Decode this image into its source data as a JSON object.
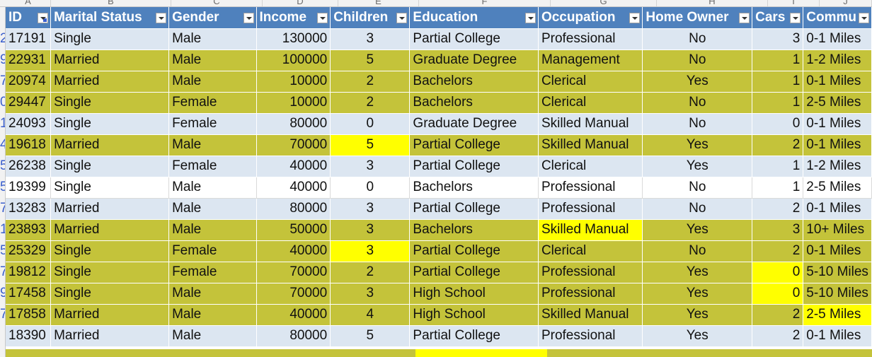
{
  "columns": [
    {
      "key": "id",
      "label": "ID",
      "filtered": true
    },
    {
      "key": "marital",
      "label": "Marital Status",
      "filtered": false
    },
    {
      "key": "gender",
      "label": "Gender",
      "filtered": false
    },
    {
      "key": "income",
      "label": "Income",
      "filtered": false
    },
    {
      "key": "children",
      "label": "Children",
      "filtered": false
    },
    {
      "key": "education",
      "label": "Education",
      "filtered": false
    },
    {
      "key": "occupation",
      "label": "Occupation",
      "filtered": false
    },
    {
      "key": "home",
      "label": "Home Owner",
      "filtered": false
    },
    {
      "key": "cars",
      "label": "Cars",
      "filtered": false
    },
    {
      "key": "commute",
      "label": "Commu",
      "filtered": false
    }
  ],
  "column_letters": [
    "A",
    "B",
    "C",
    "D",
    "E",
    "F",
    "G",
    "H",
    "I",
    "J"
  ],
  "row_number_fragments": [
    "",
    "2",
    "9",
    "7",
    "0",
    "1",
    "4",
    "5",
    "5",
    "7",
    "1",
    "5",
    "7",
    "9",
    "7"
  ],
  "rows": [
    {
      "style": "blue",
      "highlight": [],
      "cells": [
        "17191",
        "Single",
        "Male",
        "130000",
        "3",
        "Partial College",
        "Professional",
        "No",
        "3",
        "0-1 Miles"
      ]
    },
    {
      "style": "olive",
      "highlight": [],
      "cells": [
        "22931",
        "Married",
        "Male",
        "100000",
        "5",
        "Graduate Degree",
        "Management",
        "No",
        "1",
        "1-2 Miles"
      ]
    },
    {
      "style": "olive",
      "highlight": [],
      "cells": [
        "20974",
        "Married",
        "Male",
        "10000",
        "2",
        "Bachelors",
        "Clerical",
        "Yes",
        "1",
        "0-1 Miles"
      ]
    },
    {
      "style": "olive",
      "highlight": [],
      "cells": [
        "29447",
        "Single",
        "Female",
        "10000",
        "2",
        "Bachelors",
        "Clerical",
        "No",
        "1",
        "2-5 Miles"
      ]
    },
    {
      "style": "blue",
      "highlight": [],
      "cells": [
        "24093",
        "Single",
        "Female",
        "80000",
        "0",
        "Graduate Degree",
        "Skilled Manual",
        "No",
        "0",
        "0-1 Miles"
      ]
    },
    {
      "style": "olive",
      "highlight": [
        "children"
      ],
      "cells": [
        "19618",
        "Married",
        "Male",
        "70000",
        "5",
        "Partial College",
        "Skilled Manual",
        "Yes",
        "2",
        "0-1 Miles"
      ]
    },
    {
      "style": "blue",
      "highlight": [],
      "cells": [
        "26238",
        "Single",
        "Female",
        "40000",
        "3",
        "Partial College",
        "Clerical",
        "Yes",
        "1",
        "1-2 Miles"
      ]
    },
    {
      "style": "white",
      "highlight": [],
      "cells": [
        "19399",
        "Single",
        "Male",
        "40000",
        "0",
        "Bachelors",
        "Professional",
        "No",
        "1",
        "2-5 Miles"
      ]
    },
    {
      "style": "blue",
      "highlight": [],
      "cells": [
        "13283",
        "Married",
        "Male",
        "80000",
        "3",
        "Partial College",
        "Professional",
        "No",
        "2",
        "0-1 Miles"
      ]
    },
    {
      "style": "olive",
      "highlight": [
        "occupation"
      ],
      "cells": [
        "23893",
        "Married",
        "Male",
        "50000",
        "3",
        "Bachelors",
        "Skilled Manual",
        "Yes",
        "3",
        "10+ Miles"
      ]
    },
    {
      "style": "olive",
      "highlight": [
        "children"
      ],
      "cells": [
        "25329",
        "Single",
        "Female",
        "40000",
        "3",
        "Partial College",
        "Clerical",
        "No",
        "2",
        "0-1 Miles"
      ]
    },
    {
      "style": "olive",
      "highlight": [
        "cars"
      ],
      "cells": [
        "19812",
        "Single",
        "Female",
        "70000",
        "2",
        "Partial College",
        "Professional",
        "Yes",
        "0",
        "5-10 Miles"
      ]
    },
    {
      "style": "olive",
      "highlight": [
        "cars"
      ],
      "cells": [
        "17458",
        "Single",
        "Male",
        "70000",
        "3",
        "High School",
        "Professional",
        "Yes",
        "0",
        "5-10 Miles"
      ]
    },
    {
      "style": "olive",
      "highlight": [
        "commute"
      ],
      "cells": [
        "17858",
        "Married",
        "Male",
        "40000",
        "4",
        "High School",
        "Skilled Manual",
        "Yes",
        "2",
        "2-5 Miles"
      ]
    },
    {
      "style": "blue",
      "highlight": [],
      "cells": [
        "18390",
        "Married",
        "Male",
        "80000",
        "5",
        "Partial College",
        "Professional",
        "Yes",
        "2",
        "0-1 Miles"
      ]
    }
  ],
  "colors": {
    "header_bg": "#4f81bd",
    "blue_row": "#dce6f1",
    "olive_row": "#c4c33a",
    "highlight": "#ffff00"
  }
}
